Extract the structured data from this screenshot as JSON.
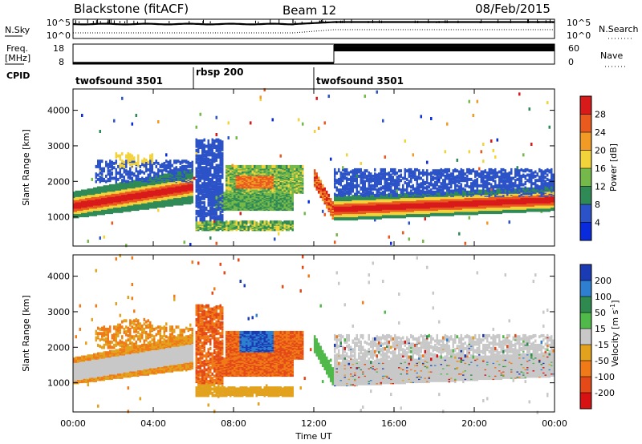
{
  "header": {
    "station": "Blackstone (fitACF)",
    "beam": "Beam 12",
    "date": "08/Feb/2015"
  },
  "chart_data": [
    {
      "type": "line",
      "panel": "noise",
      "left_label": "N.Sky",
      "right_label": "N.Search",
      "left_ticks": [
        "10^5",
        "10^0"
      ],
      "right_ticks": [
        "10^5",
        "10^0"
      ],
      "scale": "log"
    },
    {
      "type": "line",
      "panel": "freq-nave",
      "left_label_1": "Freq.",
      "left_label_2": "[MHz]",
      "right_label": "Nave",
      "left_ticks": [
        "18",
        "8"
      ],
      "right_ticks": [
        "60",
        "0"
      ],
      "cpid_label": "CPID",
      "freq_before_1300": 8.6,
      "freq_after_1300": 17.6,
      "nave_before_1300": 3,
      "nave_after_1300": 55,
      "programs": [
        {
          "name": "twofsound 3501",
          "start": 0.0,
          "end": 6.0
        },
        {
          "name": "rbsp 200",
          "start": 6.0,
          "end": 12.0
        },
        {
          "name": "twofsound 3501",
          "start": 12.0,
          "end": 24.0
        }
      ]
    },
    {
      "type": "heatmap",
      "panel": "power",
      "ylabel": "Slant Range [km]",
      "ylim": [
        180,
        4600
      ],
      "yticks": [
        "1000",
        "2000",
        "3000",
        "4000"
      ],
      "ytick_values": [
        1000,
        2000,
        3000,
        4000
      ],
      "colorbar_label": "Power [dB]",
      "colorbar_ticks": [
        "4",
        "8",
        "12",
        "16",
        "20",
        "24",
        "28"
      ],
      "colorbar_colors": [
        "#0a2bdc",
        "#2c52c7",
        "#2f8a56",
        "#74b94a",
        "#f3d33c",
        "#f19a26",
        "#e85a1e",
        "#d81a1a"
      ],
      "xlim": [
        0,
        24
      ]
    },
    {
      "type": "heatmap",
      "panel": "velocity",
      "ylabel": "Slant Range [km]",
      "ylim": [
        180,
        4600
      ],
      "yticks": [
        "1000",
        "2000",
        "3000",
        "4000"
      ],
      "ytick_values": [
        1000,
        2000,
        3000,
        4000
      ],
      "colorbar_label": "Velocity [m s",
      "colorbar_label_sup": "-1",
      "colorbar_label_end": "]",
      "colorbar_ticks": [
        "200",
        "100",
        "50",
        "15",
        "-15",
        "-50",
        "-100",
        "-200"
      ],
      "colorbar_colors": [
        "#1a3bb4",
        "#2f7fd0",
        "#2f8a50",
        "#4fb94a",
        "#c8c8c8",
        "#e3a21e",
        "#f07a18",
        "#e44a18",
        "#d81212"
      ],
      "xlim": [
        0,
        24
      ],
      "xticks": [
        "00:00",
        "04:00",
        "08:00",
        "12:00",
        "16:00",
        "20:00",
        "00:00"
      ],
      "xtick_values": [
        0,
        4,
        8,
        12,
        16,
        20,
        24
      ],
      "xlabel": "Time UT"
    }
  ]
}
